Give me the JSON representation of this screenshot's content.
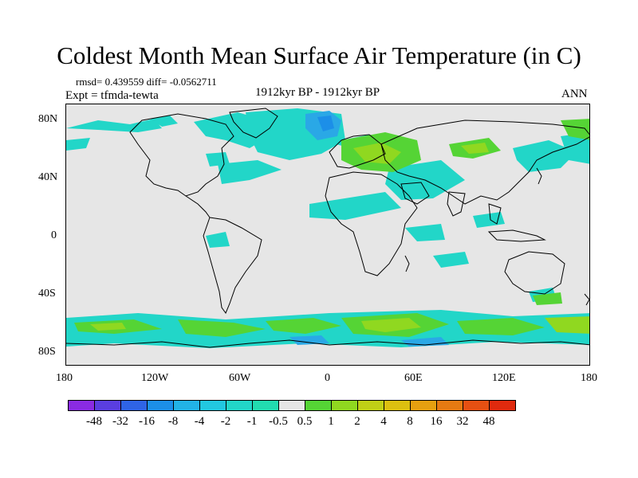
{
  "title": "Coldest Month Mean Surface Air Temperature (in C)",
  "stats": {
    "rmsd": "rmsd= 0.439559 diff= -0.0562711",
    "expt": "Expt = tfmda-tewta",
    "period": "1912kyr BP - 1912kyr BP",
    "season": "ANN"
  },
  "y_ticks": [
    "80N",
    "40N",
    "0",
    "40S",
    "80S"
  ],
  "x_ticks": [
    "180",
    "120W",
    "60W",
    "0",
    "60E",
    "120E",
    "180"
  ],
  "colorbar": {
    "colors": [
      "#8a2be2",
      "#5a3ee0",
      "#2f64e6",
      "#1c8fe8",
      "#22b3e6",
      "#22c8e0",
      "#22d6c8",
      "#22dcb0",
      "#e6e6e6",
      "#55d435",
      "#90d820",
      "#c0d016",
      "#dcc010",
      "#e6a010",
      "#e67a12",
      "#e65012",
      "#e02a0e"
    ],
    "labels": [
      "-48",
      "-32",
      "-16",
      "-8",
      "-4",
      "-2",
      "-1",
      "-0.5",
      "0.5",
      "1",
      "2",
      "4",
      "8",
      "16",
      "32",
      "48"
    ]
  },
  "field_colors": {
    "cyan": "#22d6c8",
    "blue": "#2aa8e6",
    "teal": "#22c8e0",
    "green": "#55d435",
    "yellowgreen": "#90d820",
    "background": "#e6e6e6"
  }
}
